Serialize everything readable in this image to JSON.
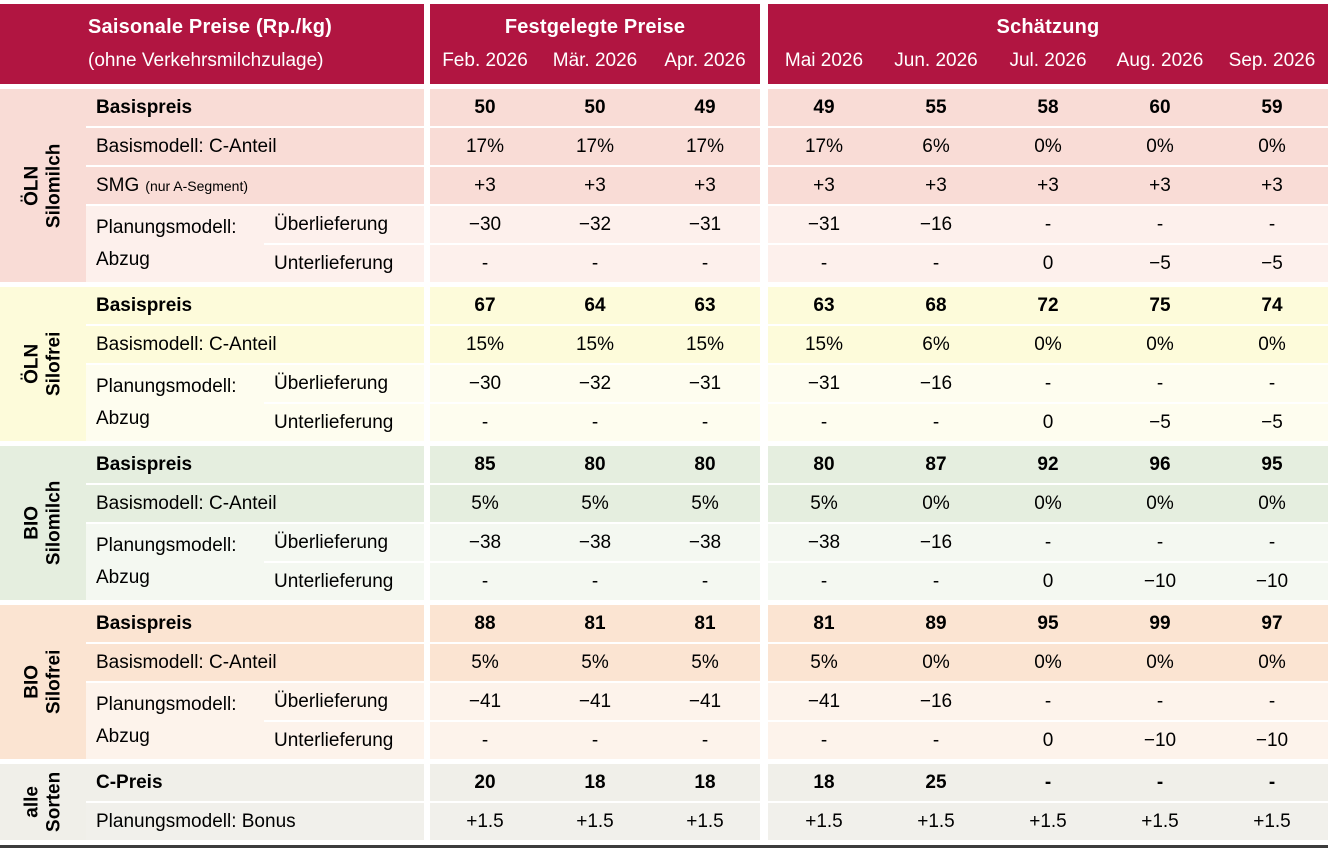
{
  "colors": {
    "header_red": "#b11541",
    "header_text": "#ffffff",
    "text": "#000000",
    "bottom_rule": "#3c3c3c"
  },
  "header": {
    "title_main": "Saisonale Preise (Rp./kg)",
    "title_sub": "(ohne Verkehrsmilchzulage)",
    "group_fixed": "Festgelegte Preise",
    "group_estimate": "Schätzung",
    "months_fixed": [
      "Feb. 2026",
      "Mär. 2026",
      "Apr. 2026"
    ],
    "months_estimate": [
      "Mai 2026",
      "Jun. 2026",
      "Jul. 2026",
      "Aug. 2026",
      "Sep. 2026"
    ]
  },
  "blocks": [
    {
      "id": "oeln-silomilch",
      "band_line1": "ÖLN",
      "band_line2": "Silomilch",
      "color_dark": "#f9dcd6",
      "color_light": "#fdf0ec",
      "rows": [
        {
          "type": "full",
          "bold": true,
          "shade": "dark",
          "label": "Basispreis",
          "values": [
            "50",
            "50",
            "49",
            "49",
            "55",
            "58",
            "60",
            "59"
          ]
        },
        {
          "type": "full",
          "shade": "dark",
          "label": "Basismodell: C-Anteil",
          "values": [
            "17%",
            "17%",
            "17%",
            "17%",
            "6%",
            "0%",
            "0%",
            "0%"
          ]
        },
        {
          "type": "full",
          "shade": "dark",
          "label": "SMG",
          "label_note": "(nur A-Segment)",
          "values": [
            "+3",
            "+3",
            "+3",
            "+3",
            "+3",
            "+3",
            "+3",
            "+3"
          ]
        },
        {
          "type": "split",
          "shade": "light",
          "main_label_line1": "Planungsmodell:",
          "main_label_line2": "Abzug",
          "subrows": [
            {
              "label": "Überlieferung",
              "values": [
                "−30",
                "−32",
                "−31",
                "−31",
                "−16",
                "-",
                "-",
                "-"
              ]
            },
            {
              "label": "Unterlieferung",
              "values": [
                "-",
                "-",
                "-",
                "-",
                "-",
                "0",
                "−5",
                "−5"
              ]
            }
          ]
        }
      ]
    },
    {
      "id": "oeln-silofrei",
      "band_line1": "ÖLN",
      "band_line2": "Silofrei",
      "color_dark": "#fdfbda",
      "color_light": "#fefdef",
      "rows": [
        {
          "type": "full",
          "bold": true,
          "shade": "dark",
          "label": "Basispreis",
          "values": [
            "67",
            "64",
            "63",
            "63",
            "68",
            "72",
            "75",
            "74"
          ]
        },
        {
          "type": "full",
          "shade": "dark",
          "label": "Basismodell: C-Anteil",
          "values": [
            "15%",
            "15%",
            "15%",
            "15%",
            "6%",
            "0%",
            "0%",
            "0%"
          ]
        },
        {
          "type": "split",
          "shade": "light",
          "main_label_line1": "Planungsmodell:",
          "main_label_line2": "Abzug",
          "subrows": [
            {
              "label": "Überlieferung",
              "values": [
                "−30",
                "−32",
                "−31",
                "−31",
                "−16",
                "-",
                "-",
                "-"
              ]
            },
            {
              "label": "Unterlieferung",
              "values": [
                "-",
                "-",
                "-",
                "-",
                "-",
                "0",
                "−5",
                "−5"
              ]
            }
          ]
        }
      ]
    },
    {
      "id": "bio-silomilch",
      "band_line1": "BIO",
      "band_line2": "Silomilch",
      "color_dark": "#e5eedf",
      "color_light": "#f4f8f1",
      "rows": [
        {
          "type": "full",
          "bold": true,
          "shade": "dark",
          "label": "Basispreis",
          "values": [
            "85",
            "80",
            "80",
            "80",
            "87",
            "92",
            "96",
            "95"
          ]
        },
        {
          "type": "full",
          "shade": "dark",
          "label": "Basismodell: C-Anteil",
          "values": [
            "5%",
            "5%",
            "5%",
            "5%",
            "0%",
            "0%",
            "0%",
            "0%"
          ]
        },
        {
          "type": "split",
          "shade": "light",
          "main_label_line1": "Planungsmodell:",
          "main_label_line2": "Abzug",
          "subrows": [
            {
              "label": "Überlieferung",
              "values": [
                "−38",
                "−38",
                "−38",
                "−38",
                "−16",
                "-",
                "-",
                "-"
              ]
            },
            {
              "label": "Unterlieferung",
              "values": [
                "-",
                "-",
                "-",
                "-",
                "-",
                "0",
                "−10",
                "−10"
              ]
            }
          ]
        }
      ]
    },
    {
      "id": "bio-silofrei",
      "band_line1": "BIO",
      "band_line2": "Silofrei",
      "color_dark": "#fbe4d2",
      "color_light": "#fdf3eb",
      "rows": [
        {
          "type": "full",
          "bold": true,
          "shade": "dark",
          "label": "Basispreis",
          "values": [
            "88",
            "81",
            "81",
            "81",
            "89",
            "95",
            "99",
            "97"
          ]
        },
        {
          "type": "full",
          "shade": "dark",
          "label": "Basismodell: C-Anteil",
          "values": [
            "5%",
            "5%",
            "5%",
            "5%",
            "0%",
            "0%",
            "0%",
            "0%"
          ]
        },
        {
          "type": "split",
          "shade": "light",
          "main_label_line1": "Planungsmodell:",
          "main_label_line2": "Abzug",
          "subrows": [
            {
              "label": "Überlieferung",
              "values": [
                "−41",
                "−41",
                "−41",
                "−41",
                "−16",
                "-",
                "-",
                "-"
              ]
            },
            {
              "label": "Unterlieferung",
              "values": [
                "-",
                "-",
                "-",
                "-",
                "-",
                "0",
                "−10",
                "−10"
              ]
            }
          ]
        }
      ]
    },
    {
      "id": "alle-sorten",
      "band_line1": "alle",
      "band_line2": "Sorten",
      "color_dark": "#f0efe9",
      "color_light": "#f1f0eb",
      "rows": [
        {
          "type": "full",
          "bold": true,
          "shade": "dark",
          "label": "C-Preis",
          "values": [
            "20",
            "18",
            "18",
            "18",
            "25",
            "-",
            "-",
            "-"
          ]
        },
        {
          "type": "full",
          "shade": "light",
          "label": "Planungsmodell: Bonus",
          "values": [
            "+1.5",
            "+1.5",
            "+1.5",
            "+1.5",
            "+1.5",
            "+1.5",
            "+1.5",
            "+1.5"
          ]
        }
      ]
    }
  ]
}
